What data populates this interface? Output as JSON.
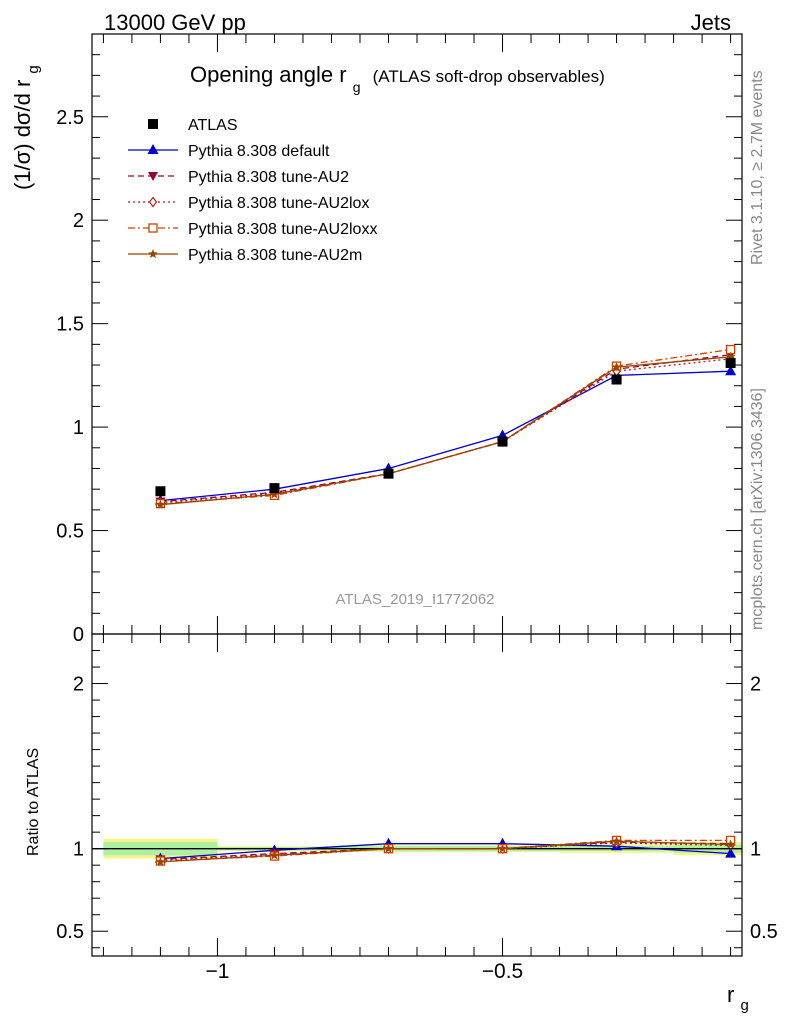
{
  "header": {
    "left": "13000 GeV pp",
    "right": "Jets"
  },
  "title": {
    "main": "Opening angle r",
    "sub": "g",
    "paren": "(ATLAS soft-drop observables)"
  },
  "side_labels": {
    "rivet": "Rivet 3.1.10, ≥ 2.7M events",
    "mcplots": "mcplots.cern.ch [arXiv:1306.3436]"
  },
  "watermark": "ATLAS_2019_I1772062",
  "axes": {
    "ylabel_top": "(1/σ) dσ/d r",
    "ylabel_top_sub": "g",
    "ylabel_bottom": "Ratio to ATLAS",
    "xlabel": "r",
    "xlabel_sub": "g"
  },
  "colors": {
    "atlas": "#000000",
    "default": "#0000cc",
    "au2": "#990033",
    "au2lox": "#aa2222",
    "au2loxx": "#cc4400",
    "au2m": "#994400",
    "band_outer": "#f5f58a",
    "band_inner": "#aef0a0"
  },
  "chart_data": [
    {
      "type": "line",
      "panel": "main",
      "xlim": [
        -1.22,
        -0.08
      ],
      "ylim": [
        0,
        2.9
      ],
      "yticks": [
        0,
        0.5,
        1,
        1.5,
        2,
        2.5
      ],
      "ytick_labels": [
        "0",
        "0.5",
        "1",
        "1.5",
        "2",
        "2.5"
      ],
      "x": [
        -1.1,
        -0.9,
        -0.7,
        -0.5,
        -0.3,
        -0.1
      ],
      "legend_position": "top-left",
      "series": [
        {
          "name": "ATLAS",
          "key": "atlas",
          "marker": "square-filled",
          "values": [
            0.69,
            0.705,
            0.775,
            0.93,
            1.23,
            1.31
          ]
        },
        {
          "name": "Pythia 8.308 default",
          "key": "default",
          "marker": "triangle-up",
          "line": "solid",
          "values": [
            0.645,
            0.7,
            0.8,
            0.96,
            1.25,
            1.27
          ]
        },
        {
          "name": "Pythia 8.308 tune-AU2",
          "key": "au2",
          "marker": "triangle-down",
          "line": "dashed",
          "values": [
            0.64,
            0.685,
            0.775,
            0.93,
            1.28,
            1.35
          ]
        },
        {
          "name": "Pythia 8.308 tune-AU2lox",
          "key": "au2lox",
          "marker": "diamond-open",
          "line": "dotted",
          "values": [
            0.635,
            0.68,
            0.775,
            0.93,
            1.27,
            1.33
          ]
        },
        {
          "name": "Pythia 8.308 tune-AU2loxx",
          "key": "au2loxx",
          "marker": "square-open",
          "line": "dashdot",
          "values": [
            0.63,
            0.67,
            0.775,
            0.93,
            1.295,
            1.375
          ]
        },
        {
          "name": "Pythia 8.308 tune-AU2m",
          "key": "au2m",
          "marker": "star",
          "line": "solid",
          "values": [
            0.625,
            0.675,
            0.775,
            0.93,
            1.29,
            1.34
          ]
        }
      ]
    },
    {
      "type": "line",
      "panel": "ratio",
      "xlim": [
        -1.22,
        -0.08
      ],
      "ylim": [
        0.35,
        2.3
      ],
      "yticks": [
        0.5,
        1,
        2
      ],
      "ytick_labels": [
        "0.5",
        "1",
        "2"
      ],
      "xticks": [
        -1,
        -0.5
      ],
      "xtick_labels": [
        "−1",
        "−0.5"
      ],
      "x": [
        -1.1,
        -0.9,
        -0.7,
        -0.5,
        -0.3,
        -0.1
      ],
      "bands": [
        {
          "x0": -1.2,
          "x1": -1.0,
          "outer": [
            0.94,
            1.06
          ],
          "inner": [
            0.96,
            1.04
          ]
        },
        {
          "x0": -1.0,
          "x1": -0.8,
          "outer": [
            0.985,
            1.015
          ],
          "inner": [
            0.99,
            1.01
          ]
        },
        {
          "x0": -0.8,
          "x1": -0.6,
          "outer": [
            0.98,
            1.02
          ],
          "inner": [
            0.985,
            1.015
          ]
        },
        {
          "x0": -0.6,
          "x1": -0.4,
          "outer": [
            0.98,
            1.02
          ],
          "inner": [
            0.985,
            1.015
          ]
        },
        {
          "x0": -0.4,
          "x1": -0.2,
          "outer": [
            0.975,
            1.025
          ],
          "inner": [
            0.985,
            1.015
          ]
        },
        {
          "x0": -0.2,
          "x1": -0.08,
          "outer": [
            0.96,
            1.04
          ],
          "inner": [
            0.975,
            1.025
          ]
        }
      ],
      "series": [
        {
          "name": "Pythia 8.308 default",
          "key": "default",
          "marker": "triangle-up",
          "line": "solid",
          "values": [
            0.94,
            0.99,
            1.03,
            1.03,
            1.015,
            0.97
          ]
        },
        {
          "name": "Pythia 8.308 tune-AU2",
          "key": "au2",
          "marker": "triangle-down",
          "line": "dashed",
          "values": [
            0.935,
            0.97,
            1.0,
            1.0,
            1.04,
            1.03
          ]
        },
        {
          "name": "Pythia 8.308 tune-AU2lox",
          "key": "au2lox",
          "marker": "diamond-open",
          "line": "dotted",
          "values": [
            0.93,
            0.965,
            1.0,
            1.0,
            1.035,
            1.02
          ]
        },
        {
          "name": "Pythia 8.308 tune-AU2loxx",
          "key": "au2loxx",
          "marker": "square-open",
          "line": "dashdot",
          "values": [
            0.925,
            0.955,
            1.0,
            1.0,
            1.05,
            1.05
          ]
        },
        {
          "name": "Pythia 8.308 tune-AU2m",
          "key": "au2m",
          "marker": "star",
          "line": "solid",
          "values": [
            0.92,
            0.96,
            1.0,
            1.0,
            1.045,
            1.025
          ]
        }
      ]
    }
  ]
}
